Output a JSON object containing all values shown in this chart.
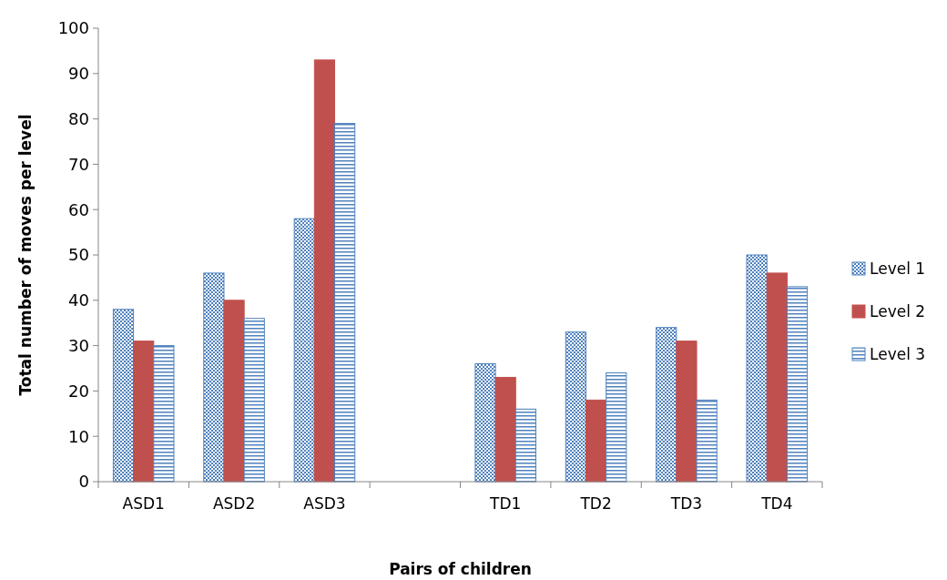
{
  "chart_data": {
    "type": "bar",
    "xlabel": "Pairs of children",
    "ylabel": "Total number of moves per level",
    "categories": [
      "ASD1",
      "ASD2",
      "ASD3",
      null,
      "TD1",
      "TD2",
      "TD3",
      "TD4"
    ],
    "series": [
      {
        "name": "Level 1",
        "color": "#4f81bd",
        "values": [
          38,
          46,
          58,
          null,
          26,
          33,
          34,
          50
        ]
      },
      {
        "name": "Level 2",
        "color": "#c0504d",
        "values": [
          31,
          40,
          93,
          null,
          23,
          18,
          31,
          46
        ]
      },
      {
        "name": "Level 3",
        "color": "#4f81bd",
        "values": [
          30,
          36,
          79,
          null,
          16,
          24,
          18,
          43
        ]
      }
    ],
    "ylim": [
      0,
      100
    ],
    "yticks": [
      0,
      10,
      20,
      30,
      40,
      50,
      60,
      70,
      80,
      90,
      100
    ],
    "grid": false,
    "legend": "right"
  }
}
